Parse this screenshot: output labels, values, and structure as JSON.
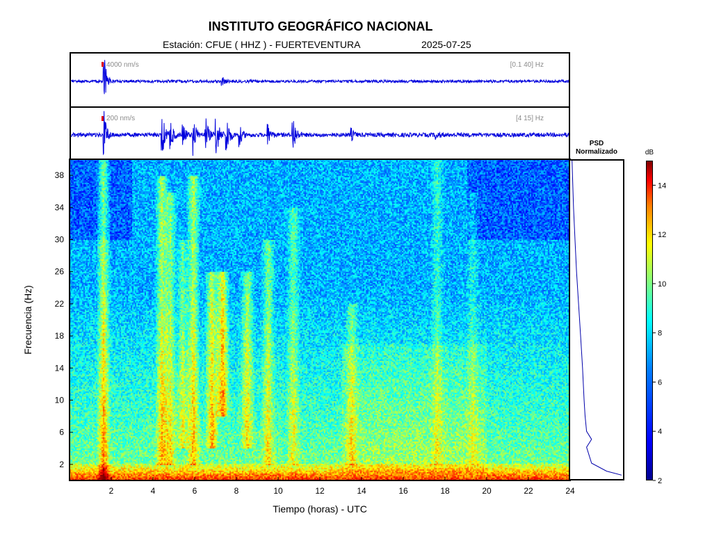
{
  "header": {
    "title": "INSTITUTO GEOGRÁFICO NACIONAL",
    "station_label": "Estación:  CFUE ( HHZ ) - FUERTEVENTURA",
    "date": "2025-07-25"
  },
  "trace_panels": [
    {
      "scale": "4000 nm/s",
      "band": "[0.1 40] Hz"
    },
    {
      "scale": "200 nm/s",
      "band": "[4 15] Hz"
    }
  ],
  "psd_panel": {
    "title_line1": "PSD",
    "title_line2": "Normalizado"
  },
  "colorbar": {
    "unit": "dB",
    "ticks": [
      "2",
      "4",
      "6",
      "8",
      "10",
      "12",
      "14"
    ],
    "range": [
      2,
      15
    ]
  },
  "colors": {
    "trace": "#0000dd",
    "marker": "#e00000",
    "psd_line": "#0000aa"
  },
  "chart_data": {
    "type": "heatmap",
    "title": "INSTITUTO GEOGRÁFICO NACIONAL",
    "xlabel": "Tiempo (horas) - UTC",
    "ylabel": "Frecuencia  (Hz)",
    "xlim": [
      0,
      24
    ],
    "ylim": [
      0,
      40
    ],
    "x_ticks": [
      2,
      4,
      6,
      8,
      10,
      12,
      14,
      16,
      18,
      20,
      22,
      24
    ],
    "y_ticks": [
      2,
      6,
      10,
      14,
      18,
      22,
      26,
      30,
      34,
      38
    ],
    "x_tick_labels": [
      "2",
      "4",
      "6",
      "8",
      "10",
      "12",
      "14",
      "16",
      "18",
      "20",
      "22",
      "24"
    ],
    "y_tick_labels": [
      "2",
      "6",
      "10",
      "14",
      "18",
      "22",
      "26",
      "30",
      "34",
      "38"
    ],
    "events": [
      {
        "time": 1.6,
        "fmin": 0,
        "fmax": 40,
        "strength": 0.55
      },
      {
        "time": 4.4,
        "fmin": 2,
        "fmax": 38,
        "strength": 0.5
      },
      {
        "time": 4.8,
        "fmin": 2,
        "fmax": 36,
        "strength": 0.4
      },
      {
        "time": 5.4,
        "fmin": 4,
        "fmax": 30,
        "strength": 0.35
      },
      {
        "time": 5.9,
        "fmin": 2,
        "fmax": 38,
        "strength": 0.5
      },
      {
        "time": 6.8,
        "fmin": 4,
        "fmax": 26,
        "strength": 0.55
      },
      {
        "time": 7.3,
        "fmin": 8,
        "fmax": 26,
        "strength": 0.7
      },
      {
        "time": 8.5,
        "fmin": 4,
        "fmax": 26,
        "strength": 0.45
      },
      {
        "time": 9.5,
        "fmin": 2,
        "fmax": 30,
        "strength": 0.4
      },
      {
        "time": 10.7,
        "fmin": 2,
        "fmax": 34,
        "strength": 0.35
      },
      {
        "time": 13.5,
        "fmin": 2,
        "fmax": 22,
        "strength": 0.3
      },
      {
        "time": 17.6,
        "fmin": 2,
        "fmax": 40,
        "strength": 0.25
      },
      {
        "time": 19.3,
        "fmin": 2,
        "fmax": 36,
        "strength": 0.2
      }
    ],
    "psd_normalized": {
      "frequency": [
        0.5,
        1,
        2,
        4,
        5,
        6,
        8,
        10,
        14,
        18,
        22,
        26,
        30,
        34,
        38,
        40
      ],
      "value": [
        1.0,
        0.7,
        0.4,
        0.3,
        0.4,
        0.3,
        0.27,
        0.25,
        0.22,
        0.18,
        0.14,
        0.1,
        0.07,
        0.04,
        0.02,
        0.01
      ]
    },
    "seismograms": [
      {
        "name": "[0.1 40] Hz",
        "events": [
          {
            "time": 1.6,
            "amp": 1.0
          },
          {
            "time": 7.3,
            "amp": 0.15
          }
        ]
      },
      {
        "name": "[4 15] Hz",
        "events": [
          {
            "time": 1.6,
            "amp": 0.9
          },
          {
            "time": 4.4,
            "amp": 0.9
          },
          {
            "time": 4.8,
            "amp": 0.6
          },
          {
            "time": 5.4,
            "amp": 0.5
          },
          {
            "time": 5.9,
            "amp": 0.8
          },
          {
            "time": 6.5,
            "amp": 0.7
          },
          {
            "time": 7.0,
            "amp": 1.0
          },
          {
            "time": 7.5,
            "amp": 0.9
          },
          {
            "time": 8.1,
            "amp": 0.5
          },
          {
            "time": 9.5,
            "amp": 0.4
          },
          {
            "time": 10.7,
            "amp": 0.9
          },
          {
            "time": 13.5,
            "amp": 0.25
          },
          {
            "time": 17.6,
            "amp": 0.15
          }
        ]
      }
    ]
  }
}
